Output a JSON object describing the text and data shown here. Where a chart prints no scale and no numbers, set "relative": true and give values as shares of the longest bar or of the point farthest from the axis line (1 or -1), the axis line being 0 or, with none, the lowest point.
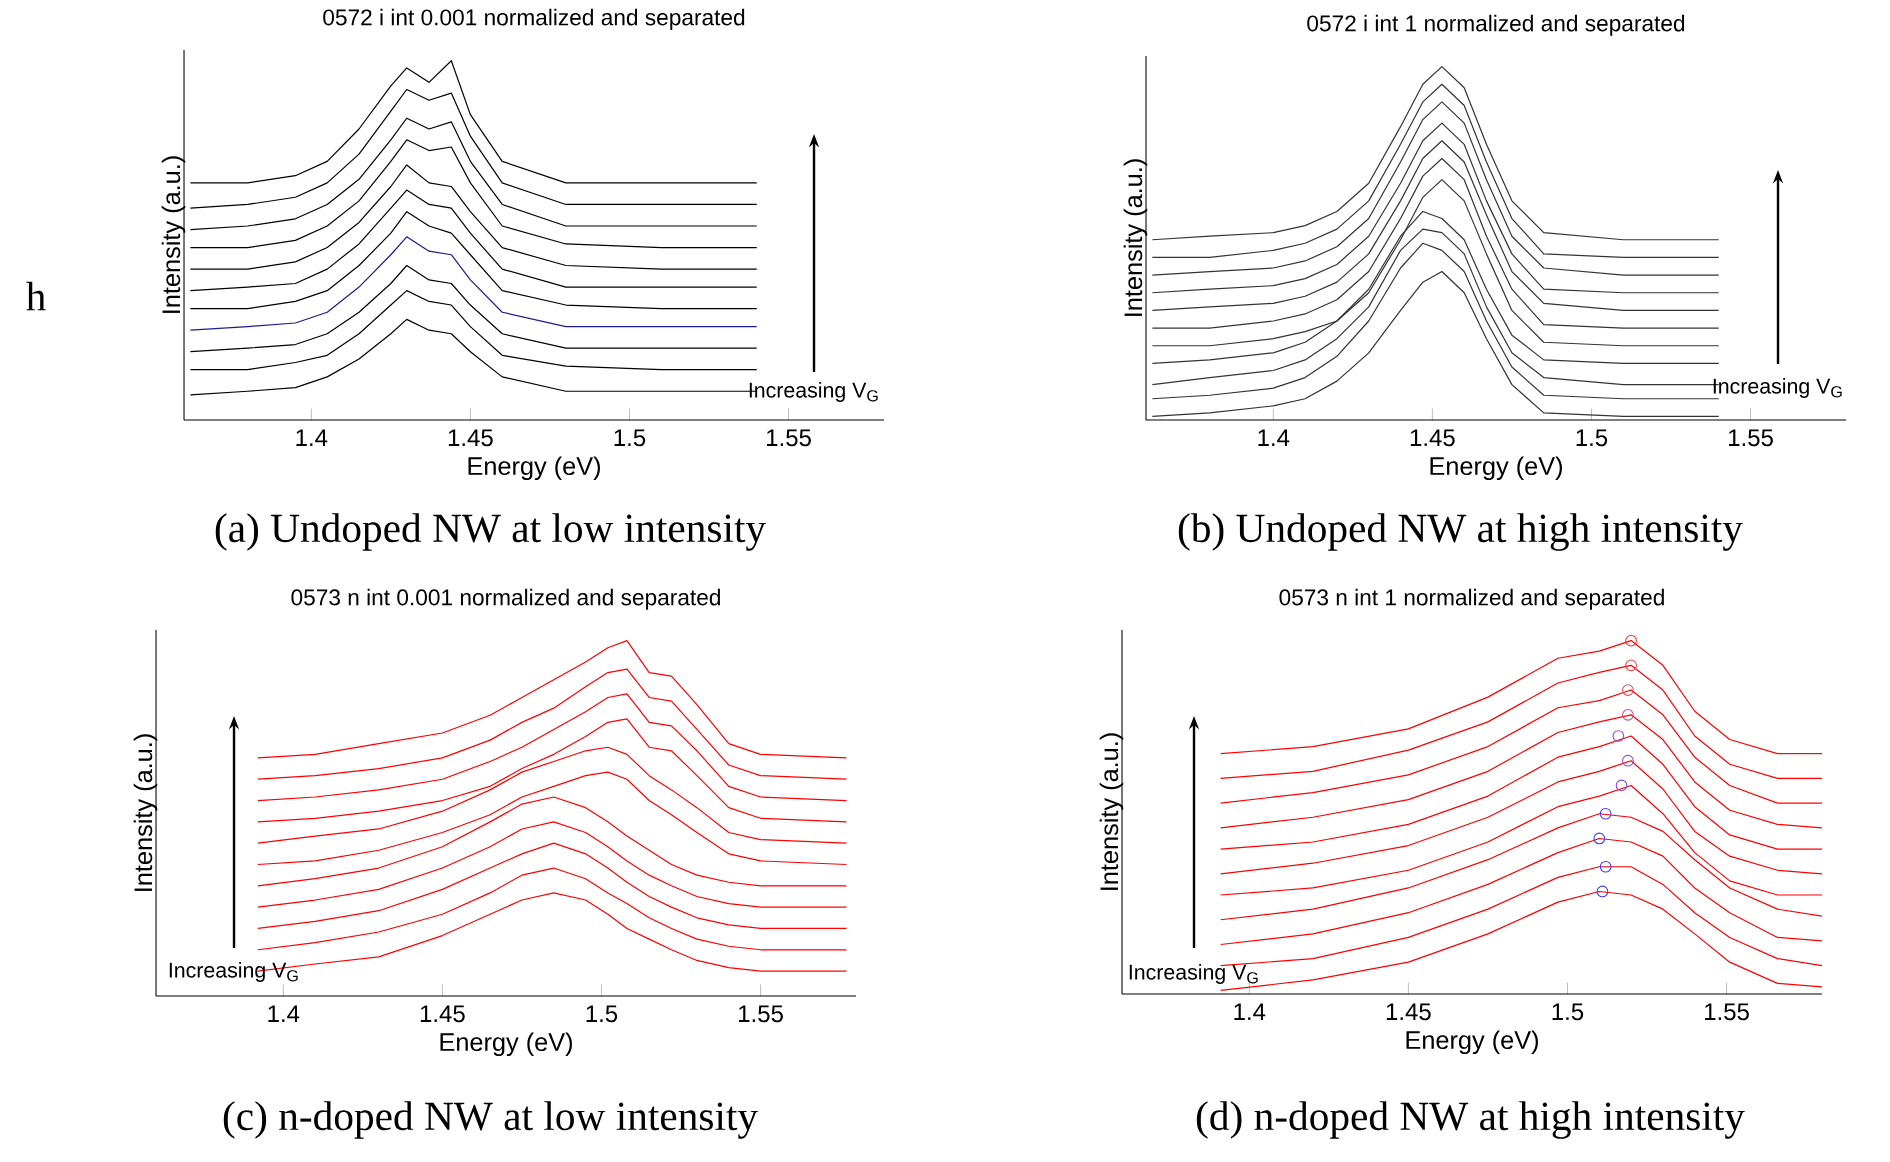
{
  "chart_data": [
    {
      "type": "line",
      "title": "0572 i int 0.001 normalized and separated",
      "xlabel": "Energy (eV)",
      "ylabel": "Intensity (a.u.)",
      "relative": true,
      "xlim": [
        1.36,
        1.58
      ],
      "xticks": [
        1.4,
        1.45,
        1.5,
        1.55
      ],
      "annotations": [
        "Increasing V$_{G}$",
        "(a) Undoped NW at low intensity",
        "h"
      ],
      "x": [
        1.362,
        1.38,
        1.395,
        1.405,
        1.415,
        1.425,
        1.43,
        1.437,
        1.444,
        1.45,
        1.46,
        1.48,
        1.51,
        1.54
      ],
      "series": [
        {
          "color": "#000000",
          "values": [
            0.07,
            0.08,
            0.09,
            0.12,
            0.17,
            0.24,
            0.28,
            0.25,
            0.24,
            0.19,
            0.12,
            0.08,
            0.08,
            0.08
          ]
        },
        {
          "color": "#000000",
          "values": [
            0.14,
            0.14,
            0.16,
            0.18,
            0.24,
            0.32,
            0.36,
            0.33,
            0.32,
            0.26,
            0.18,
            0.15,
            0.14,
            0.14
          ]
        },
        {
          "color": "#000000",
          "values": [
            0.19,
            0.2,
            0.21,
            0.24,
            0.3,
            0.38,
            0.43,
            0.39,
            0.38,
            0.32,
            0.24,
            0.2,
            0.2,
            0.2
          ]
        },
        {
          "color": "#1c1c8c",
          "values": [
            0.25,
            0.26,
            0.27,
            0.3,
            0.37,
            0.46,
            0.51,
            0.47,
            0.46,
            0.39,
            0.3,
            0.26,
            0.26,
            0.26
          ]
        },
        {
          "color": "#000000",
          "values": [
            0.31,
            0.31,
            0.33,
            0.36,
            0.43,
            0.52,
            0.58,
            0.54,
            0.52,
            0.46,
            0.36,
            0.32,
            0.31,
            0.31
          ]
        },
        {
          "color": "#000000",
          "values": [
            0.36,
            0.37,
            0.38,
            0.42,
            0.49,
            0.59,
            0.64,
            0.6,
            0.59,
            0.52,
            0.42,
            0.37,
            0.37,
            0.37
          ]
        },
        {
          "color": "#000000",
          "values": [
            0.42,
            0.42,
            0.44,
            0.48,
            0.55,
            0.65,
            0.71,
            0.66,
            0.65,
            0.58,
            0.48,
            0.43,
            0.42,
            0.42
          ]
        },
        {
          "color": "#000000",
          "values": [
            0.48,
            0.48,
            0.5,
            0.54,
            0.61,
            0.72,
            0.78,
            0.75,
            0.76,
            0.66,
            0.54,
            0.49,
            0.48,
            0.48
          ]
        },
        {
          "color": "#000000",
          "values": [
            0.53,
            0.54,
            0.56,
            0.6,
            0.67,
            0.78,
            0.84,
            0.81,
            0.83,
            0.72,
            0.6,
            0.54,
            0.54,
            0.54
          ]
        },
        {
          "color": "#000000",
          "values": [
            0.59,
            0.6,
            0.62,
            0.66,
            0.74,
            0.86,
            0.92,
            0.89,
            0.91,
            0.79,
            0.66,
            0.6,
            0.6,
            0.6
          ]
        },
        {
          "color": "#000000",
          "values": [
            0.66,
            0.66,
            0.68,
            0.72,
            0.81,
            0.93,
            0.98,
            0.94,
            1.0,
            0.85,
            0.72,
            0.66,
            0.66,
            0.66
          ]
        }
      ]
    },
    {
      "type": "line",
      "title": "0572 i int 1 normalized and separated",
      "xlabel": "Energy (eV)",
      "ylabel": "Intensity (a.u.)",
      "relative": true,
      "xlim": [
        1.36,
        1.58
      ],
      "xticks": [
        1.4,
        1.45,
        1.5,
        1.55
      ],
      "annotations": [
        "Increasing V$_{G}$",
        "(b) Undoped NW at high intensity"
      ],
      "x": [
        1.362,
        1.38,
        1.4,
        1.41,
        1.42,
        1.43,
        1.44,
        1.447,
        1.453,
        1.46,
        1.467,
        1.475,
        1.485,
        1.51,
        1.54
      ],
      "series": [
        {
          "color": "#333333",
          "values": [
            0.01,
            0.02,
            0.04,
            0.06,
            0.11,
            0.19,
            0.31,
            0.39,
            0.42,
            0.36,
            0.23,
            0.1,
            0.02,
            0.01,
            0.01
          ]
        },
        {
          "color": "#333333",
          "values": [
            0.06,
            0.07,
            0.09,
            0.12,
            0.18,
            0.28,
            0.43,
            0.5,
            0.48,
            0.42,
            0.28,
            0.15,
            0.07,
            0.06,
            0.06
          ]
        },
        {
          "color": "#333333",
          "values": [
            0.1,
            0.12,
            0.14,
            0.17,
            0.23,
            0.32,
            0.48,
            0.54,
            0.53,
            0.47,
            0.32,
            0.19,
            0.12,
            0.1,
            0.1
          ]
        },
        {
          "color": "#333333",
          "values": [
            0.16,
            0.17,
            0.19,
            0.22,
            0.28,
            0.37,
            0.52,
            0.59,
            0.57,
            0.51,
            0.37,
            0.24,
            0.17,
            0.16,
            0.16
          ]
        },
        {
          "color": "#333333",
          "values": [
            0.21,
            0.21,
            0.23,
            0.25,
            0.28,
            0.36,
            0.51,
            0.63,
            0.68,
            0.62,
            0.47,
            0.31,
            0.22,
            0.21,
            0.21
          ]
        },
        {
          "color": "#333333",
          "values": [
            0.26,
            0.26,
            0.28,
            0.3,
            0.34,
            0.42,
            0.57,
            0.69,
            0.74,
            0.68,
            0.52,
            0.37,
            0.27,
            0.26,
            0.26
          ]
        },
        {
          "color": "#333333",
          "values": [
            0.31,
            0.32,
            0.33,
            0.35,
            0.39,
            0.47,
            0.62,
            0.74,
            0.79,
            0.73,
            0.58,
            0.42,
            0.33,
            0.31,
            0.31
          ]
        },
        {
          "color": "#333333",
          "values": [
            0.36,
            0.37,
            0.38,
            0.4,
            0.44,
            0.52,
            0.67,
            0.79,
            0.84,
            0.78,
            0.62,
            0.47,
            0.37,
            0.36,
            0.36
          ]
        },
        {
          "color": "#333333",
          "values": [
            0.41,
            0.42,
            0.43,
            0.45,
            0.49,
            0.57,
            0.73,
            0.85,
            0.9,
            0.84,
            0.68,
            0.52,
            0.43,
            0.41,
            0.41
          ]
        },
        {
          "color": "#333333",
          "values": [
            0.46,
            0.46,
            0.48,
            0.5,
            0.54,
            0.62,
            0.78,
            0.9,
            0.95,
            0.89,
            0.73,
            0.57,
            0.47,
            0.46,
            0.46
          ]
        },
        {
          "color": "#333333",
          "values": [
            0.51,
            0.52,
            0.53,
            0.55,
            0.59,
            0.67,
            0.83,
            0.95,
            1.0,
            0.94,
            0.78,
            0.62,
            0.53,
            0.51,
            0.51
          ]
        }
      ]
    },
    {
      "type": "line",
      "title": "0573 n int 0.001  normalized and separated",
      "xlabel": "Energy (eV)",
      "ylabel": "Intensity (a.u.)",
      "relative": true,
      "xlim": [
        1.36,
        1.58
      ],
      "xticks": [
        1.4,
        1.45,
        1.5,
        1.55
      ],
      "annotations": [
        "Increasing V$_{G}$",
        "(c) n-doped NW at low intensity"
      ],
      "x": [
        1.392,
        1.41,
        1.43,
        1.45,
        1.465,
        1.475,
        1.485,
        1.495,
        1.502,
        1.508,
        1.515,
        1.522,
        1.53,
        1.54,
        1.55,
        1.577
      ],
      "series": [
        {
          "color": "#ff0000",
          "values": [
            0.07,
            0.09,
            0.11,
            0.17,
            0.23,
            0.27,
            0.29,
            0.27,
            0.23,
            0.19,
            0.16,
            0.13,
            0.1,
            0.08,
            0.07,
            0.07
          ]
        },
        {
          "color": "#ff0000",
          "values": [
            0.13,
            0.15,
            0.18,
            0.23,
            0.29,
            0.34,
            0.36,
            0.33,
            0.29,
            0.26,
            0.22,
            0.19,
            0.16,
            0.14,
            0.13,
            0.13
          ]
        },
        {
          "color": "#ff0000",
          "values": [
            0.19,
            0.21,
            0.24,
            0.3,
            0.36,
            0.4,
            0.43,
            0.4,
            0.36,
            0.32,
            0.28,
            0.25,
            0.22,
            0.2,
            0.19,
            0.19
          ]
        },
        {
          "color": "#ff0000",
          "values": [
            0.25,
            0.27,
            0.3,
            0.36,
            0.42,
            0.47,
            0.49,
            0.46,
            0.42,
            0.38,
            0.34,
            0.31,
            0.28,
            0.26,
            0.25,
            0.25
          ]
        },
        {
          "color": "#ff0000",
          "values": [
            0.31,
            0.33,
            0.36,
            0.42,
            0.49,
            0.54,
            0.56,
            0.53,
            0.49,
            0.45,
            0.41,
            0.37,
            0.34,
            0.32,
            0.31,
            0.31
          ]
        },
        {
          "color": "#ff0000",
          "values": [
            0.37,
            0.38,
            0.41,
            0.46,
            0.51,
            0.56,
            0.59,
            0.62,
            0.63,
            0.61,
            0.55,
            0.51,
            0.46,
            0.4,
            0.38,
            0.37
          ]
        },
        {
          "color": "#ff0000",
          "values": [
            0.43,
            0.45,
            0.47,
            0.52,
            0.58,
            0.63,
            0.66,
            0.69,
            0.7,
            0.68,
            0.62,
            0.58,
            0.53,
            0.46,
            0.44,
            0.43
          ]
        },
        {
          "color": "#ff0000",
          "values": [
            0.49,
            0.5,
            0.52,
            0.55,
            0.59,
            0.64,
            0.68,
            0.73,
            0.77,
            0.78,
            0.7,
            0.69,
            0.62,
            0.53,
            0.5,
            0.49
          ]
        },
        {
          "color": "#ff0000",
          "values": [
            0.55,
            0.56,
            0.58,
            0.61,
            0.66,
            0.7,
            0.75,
            0.8,
            0.84,
            0.85,
            0.77,
            0.76,
            0.69,
            0.59,
            0.56,
            0.55
          ]
        },
        {
          "color": "#ff0000",
          "values": [
            0.61,
            0.62,
            0.64,
            0.67,
            0.72,
            0.77,
            0.81,
            0.87,
            0.91,
            0.92,
            0.84,
            0.83,
            0.75,
            0.65,
            0.62,
            0.61
          ]
        },
        {
          "color": "#ff0000",
          "values": [
            0.67,
            0.68,
            0.71,
            0.74,
            0.79,
            0.84,
            0.89,
            0.94,
            0.98,
            1.0,
            0.91,
            0.9,
            0.82,
            0.71,
            0.68,
            0.67
          ]
        }
      ]
    },
    {
      "type": "line",
      "title": "0573 n int 1 normalized and separated",
      "xlabel": "Energy (eV)",
      "ylabel": "Intensity (a.u.)",
      "relative": true,
      "xlim": [
        1.36,
        1.58
      ],
      "xticks": [
        1.4,
        1.45,
        1.5,
        1.55
      ],
      "annotations": [
        "Increasing V$_{G}$",
        "(d) n-doped NW at high intensity"
      ],
      "x": [
        1.391,
        1.42,
        1.45,
        1.475,
        1.497,
        1.51,
        1.52,
        1.53,
        1.54,
        1.551,
        1.566,
        1.58
      ],
      "series": [
        {
          "color": "#ff0000",
          "values": [
            0.01,
            0.04,
            0.09,
            0.17,
            0.26,
            0.29,
            0.28,
            0.24,
            0.17,
            0.09,
            0.03,
            0.02
          ]
        },
        {
          "color": "#ff0000",
          "values": [
            0.08,
            0.1,
            0.16,
            0.24,
            0.33,
            0.36,
            0.36,
            0.31,
            0.23,
            0.16,
            0.1,
            0.08
          ]
        },
        {
          "color": "#ff0000",
          "values": [
            0.14,
            0.17,
            0.23,
            0.31,
            0.4,
            0.44,
            0.43,
            0.39,
            0.3,
            0.23,
            0.16,
            0.15
          ]
        },
        {
          "color": "#ff0000",
          "values": [
            0.21,
            0.24,
            0.3,
            0.38,
            0.47,
            0.51,
            0.5,
            0.46,
            0.38,
            0.3,
            0.24,
            0.22
          ]
        },
        {
          "color": "#ff0000",
          "values": [
            0.28,
            0.3,
            0.35,
            0.43,
            0.53,
            0.56,
            0.59,
            0.51,
            0.4,
            0.32,
            0.28,
            0.28
          ]
        },
        {
          "color": "#ff0000",
          "values": [
            0.34,
            0.37,
            0.42,
            0.5,
            0.6,
            0.63,
            0.66,
            0.58,
            0.46,
            0.39,
            0.35,
            0.34
          ]
        },
        {
          "color": "#ff0000",
          "values": [
            0.41,
            0.43,
            0.48,
            0.56,
            0.67,
            0.7,
            0.73,
            0.65,
            0.53,
            0.45,
            0.41,
            0.41
          ]
        },
        {
          "color": "#ff0000",
          "values": [
            0.47,
            0.5,
            0.55,
            0.63,
            0.74,
            0.77,
            0.79,
            0.72,
            0.6,
            0.52,
            0.48,
            0.47
          ]
        },
        {
          "color": "#ff0000",
          "values": [
            0.54,
            0.57,
            0.62,
            0.7,
            0.81,
            0.83,
            0.86,
            0.79,
            0.67,
            0.59,
            0.54,
            0.54
          ]
        },
        {
          "color": "#ff0000",
          "values": [
            0.61,
            0.63,
            0.69,
            0.77,
            0.88,
            0.91,
            0.93,
            0.86,
            0.73,
            0.65,
            0.61,
            0.61
          ]
        },
        {
          "color": "#ff0000",
          "values": [
            0.68,
            0.7,
            0.75,
            0.84,
            0.95,
            0.97,
            1.0,
            0.93,
            0.8,
            0.72,
            0.68,
            0.68
          ]
        },
        {
          "type": "scatter",
          "marker": "circle",
          "x": [
            1.511,
            1.512,
            1.51,
            1.512,
            1.517,
            1.519,
            1.516,
            1.519,
            1.519,
            1.52,
            1.52
          ],
          "values": [
            0.29,
            0.36,
            0.44,
            0.51,
            0.59,
            0.66,
            0.73,
            0.79,
            0.86,
            0.93,
            1.0
          ],
          "colors": [
            "#3c3cff",
            "#3c3cff",
            "#3c3cff",
            "#4a3cf0",
            "#8a44d8",
            "#a048c0",
            "#9a46c8",
            "#d04c80",
            "#e04c60",
            "#f04040",
            "#ff3030"
          ]
        }
      ]
    }
  ]
}
